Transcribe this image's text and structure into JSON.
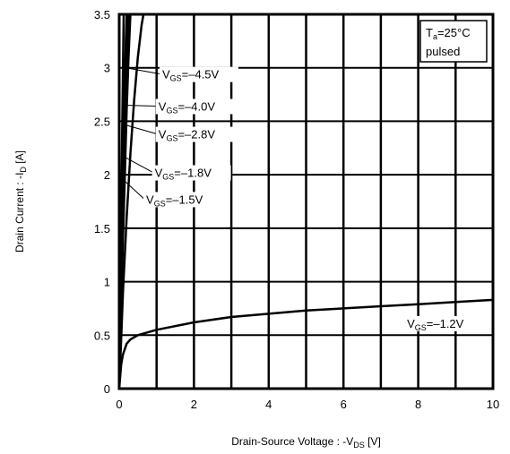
{
  "chart_data": {
    "type": "line",
    "xlabel": {
      "main": "Drain-Source Voltage : -V",
      "sub": "DS",
      "unit": " [V]"
    },
    "ylabel": {
      "main": "Drain Current : -I",
      "sub": "D",
      "unit": " [A]"
    },
    "xlim": [
      0,
      10
    ],
    "ylim": [
      0,
      3.5
    ],
    "x_ticks": [
      0,
      2,
      4,
      6,
      8,
      10
    ],
    "y_ticks": [
      0,
      0.5,
      1,
      1.5,
      2,
      2.5,
      3,
      3.5
    ],
    "x_tick_labels": [
      "0",
      "2",
      "4",
      "6",
      "8",
      "10"
    ],
    "y_tick_labels": [
      "0",
      "0.5",
      "1",
      "1.5",
      "2",
      "2.5",
      "3",
      "3.5"
    ],
    "grid": true,
    "legend_box": {
      "line1_main": "T",
      "line1_sub": "a",
      "line1_rest": "=25°C",
      "line2": "pulsed",
      "placement": "top-right"
    },
    "series": [
      {
        "name": "V_GS=-4.5V",
        "label_main": "V",
        "label_sub": "GS",
        "label_rest": "=–4.5V",
        "x": [
          0,
          0.05,
          0.1,
          0.15,
          0.2,
          0.25
        ],
        "y": [
          0,
          0.8,
          1.6,
          2.4,
          3.0,
          3.5
        ]
      },
      {
        "name": "V_GS=-4.0V",
        "label_main": "V",
        "label_sub": "GS",
        "label_rest": "=–4.0V",
        "x": [
          0,
          0.05,
          0.1,
          0.15,
          0.2,
          0.25,
          0.3
        ],
        "y": [
          0,
          0.7,
          1.4,
          2.0,
          2.6,
          3.1,
          3.5
        ]
      },
      {
        "name": "V_GS=-2.8V",
        "label_main": "V",
        "label_sub": "GS",
        "label_rest": "=–2.8V",
        "x": [
          0,
          0.05,
          0.1,
          0.2,
          0.3,
          0.4,
          0.5,
          0.6,
          0.65
        ],
        "y": [
          0,
          0.45,
          0.9,
          1.6,
          2.2,
          2.7,
          3.1,
          3.4,
          3.5
        ]
      },
      {
        "name": "V_GS=-1.8V",
        "label_main": "V",
        "label_sub": "GS",
        "label_rest": "=–1.8V",
        "x": [
          0,
          0.05,
          0.1,
          0.2
        ],
        "y": [
          0,
          1.2,
          2.4,
          3.5
        ]
      },
      {
        "name": "V_GS=-1.5V",
        "label_main": "V",
        "label_sub": "GS",
        "label_rest": "=–1.5V",
        "x": [
          0,
          0.04,
          0.08,
          0.12
        ],
        "y": [
          0,
          1.2,
          2.4,
          3.5
        ]
      },
      {
        "name": "V_GS=-1.2V",
        "label_main": "V",
        "label_sub": "GS",
        "label_rest": "=–1.2V",
        "x": [
          0,
          0.05,
          0.1,
          0.2,
          0.3,
          0.5,
          0.8,
          1,
          2,
          3,
          4,
          5,
          6,
          7,
          8,
          9,
          10
        ],
        "y": [
          0,
          0.22,
          0.32,
          0.42,
          0.46,
          0.5,
          0.53,
          0.55,
          0.62,
          0.67,
          0.7,
          0.73,
          0.75,
          0.77,
          0.79,
          0.81,
          0.83
        ]
      }
    ],
    "annotations": [
      {
        "series": "V_GS=-4.5V",
        "label_at": [
          1.15,
          2.9
        ],
        "leader_from": [
          0.18,
          3.0
        ]
      },
      {
        "series": "V_GS=-4.0V",
        "label_at": [
          1.05,
          2.6
        ],
        "leader_from": [
          0.12,
          2.65
        ]
      },
      {
        "series": "V_GS=-2.8V",
        "label_at": [
          1.05,
          2.34
        ],
        "leader_from": [
          0.12,
          2.47
        ]
      },
      {
        "series": "V_GS=-1.8V",
        "label_at": [
          0.95,
          1.98
        ],
        "leader_from": [
          0.12,
          2.17
        ]
      },
      {
        "series": "V_GS=-1.5V",
        "label_at": [
          0.72,
          1.73
        ],
        "leader_from": [
          0.12,
          1.95
        ]
      },
      {
        "series": "V_GS=-1.2V",
        "label_at": [
          7.7,
          0.57
        ],
        "leader_from": null
      }
    ]
  }
}
